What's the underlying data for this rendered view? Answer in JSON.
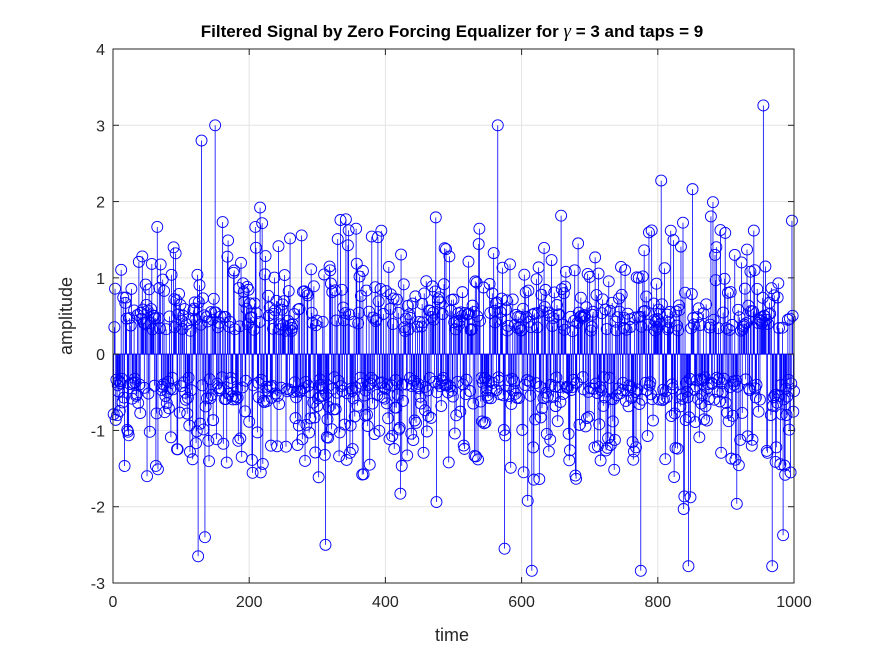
{
  "chart_data": {
    "type": "stem",
    "title_prefix": "Filtered Signal by Zero Forcing Equalizer for ",
    "title_symbol": "γ",
    "title_suffix": " = 3 and taps = 9",
    "xlabel": "time",
    "ylabel": "amplitude",
    "xlim": [
      0,
      1000
    ],
    "ylim": [
      -3,
      4
    ],
    "xticks": [
      0,
      200,
      400,
      600,
      800,
      1000
    ],
    "yticks": [
      -3,
      -2,
      -1,
      0,
      1,
      2,
      3,
      4
    ],
    "grid": true,
    "series": [
      {
        "color": "#0000ff",
        "marker": "circle-open",
        "n_points": 1000,
        "value_range": [
          -2.84,
          3.26
        ],
        "notable_points": [
          {
            "x": 130,
            "y": 2.8
          },
          {
            "x": 150,
            "y": 3.0
          },
          {
            "x": 565,
            "y": 3.0
          },
          {
            "x": 955,
            "y": 3.26
          },
          {
            "x": 125,
            "y": -2.65
          },
          {
            "x": 135,
            "y": -2.4
          },
          {
            "x": 312,
            "y": -2.5
          },
          {
            "x": 575,
            "y": -2.55
          },
          {
            "x": 615,
            "y": -2.84
          },
          {
            "x": 775,
            "y": -2.84
          },
          {
            "x": 845,
            "y": -2.78
          },
          {
            "x": 968,
            "y": -2.78
          }
        ]
      }
    ]
  }
}
